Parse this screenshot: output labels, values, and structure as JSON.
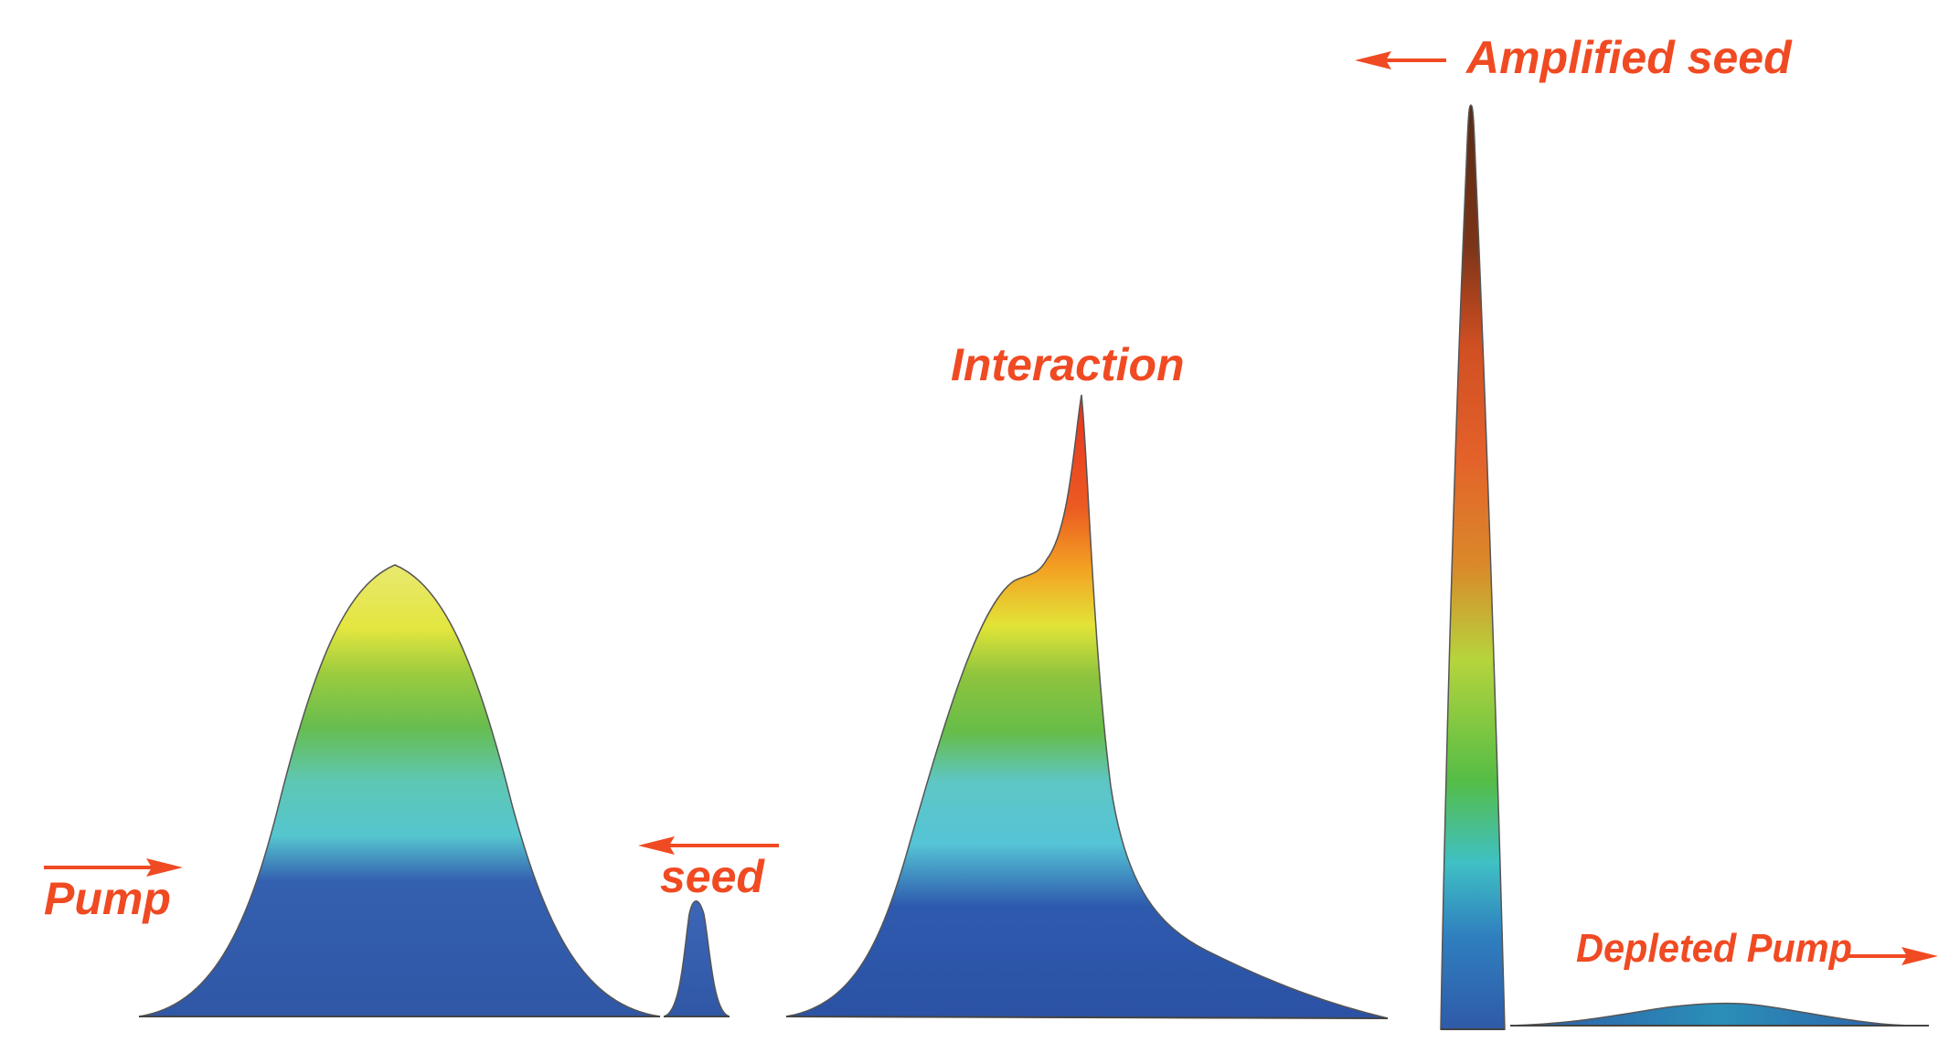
{
  "labels": {
    "pump": "Pump",
    "seed": "seed",
    "interaction": "Interaction",
    "amplified_seed": "Amplified seed",
    "depleted_pump": "Depleted Pump"
  },
  "arrows": {
    "pump": "right",
    "seed": "left",
    "amplified_seed": "left",
    "depleted_pump": "right"
  },
  "colors": {
    "label": "#f04a23",
    "gradient_blue": "#2d56a8",
    "gradient_cyan": "#55c8d4",
    "gradient_green": "#5cb84a",
    "gradient_yellow": "#e2e23a",
    "gradient_orange": "#f08c22",
    "gradient_red": "#e8351f",
    "gradient_brown": "#6e3318"
  }
}
